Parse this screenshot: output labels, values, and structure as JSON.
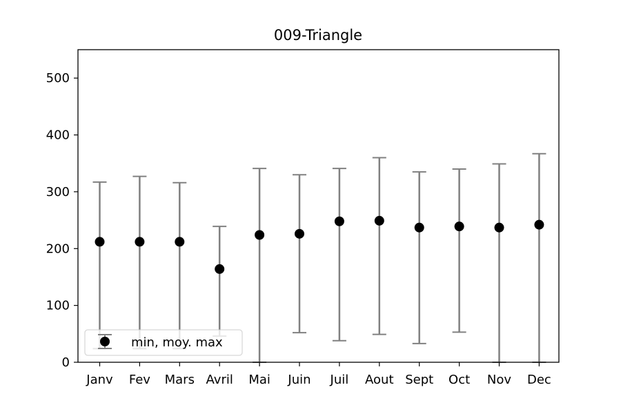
{
  "chart_data": {
    "type": "errorbar",
    "title": "009-Triangle",
    "xlabel": "",
    "ylabel": "",
    "ylim": [
      0,
      550
    ],
    "yticks": [
      0,
      100,
      200,
      300,
      400,
      500
    ],
    "grid": false,
    "legend": {
      "position": "lower-left",
      "label": "min, moy. max"
    },
    "categories": [
      "Janv",
      "Fev",
      "Mars",
      "Avril",
      "Mai",
      "Juin",
      "Juil",
      "Aout",
      "Sept",
      "Oct",
      "Nov",
      "Dec"
    ],
    "series": [
      {
        "name": "min, moy. max",
        "mean": [
          212,
          212,
          212,
          164,
          224,
          226,
          248,
          249,
          237,
          239,
          237,
          242
        ],
        "min": [
          24,
          24,
          24,
          46,
          0,
          52,
          38,
          49,
          33,
          53,
          0,
          0
        ],
        "max": [
          317,
          327,
          316,
          239,
          341,
          330,
          341,
          360,
          335,
          340,
          349,
          367
        ]
      }
    ],
    "colors": {
      "marker": "#000000",
      "errorbar": "#808080"
    }
  }
}
